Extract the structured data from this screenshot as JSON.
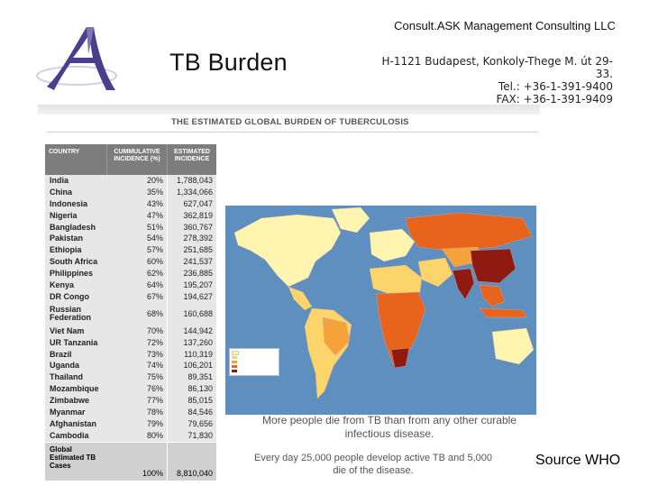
{
  "header": {
    "title": "TB Burden",
    "company": "Consult.ASK Management Consulting LLC",
    "address_line": "H-1121 Budapest, Konkoly-Thege M. út 29-33.",
    "tel_line": "Tel.:   +36-1-391-9400",
    "fax_line": "FAX: +36-1-391-9409"
  },
  "figure": {
    "title": "THE ESTIMATED GLOBAL BURDEN OF TUBERCULOSIS",
    "table": {
      "col_country": "COUNTRY",
      "col_cumulative": "CUMMULATIVE INCIDENCE (%)",
      "col_estimated": "ESTIMATED INCIDENCE",
      "rows": [
        {
          "country": "India",
          "pct": "20%",
          "incidence": "1,788,043"
        },
        {
          "country": "China",
          "pct": "35%",
          "incidence": "1,334,066"
        },
        {
          "country": "Indonesia",
          "pct": "43%",
          "incidence": "627,047"
        },
        {
          "country": "Nigeria",
          "pct": "47%",
          "incidence": "362,819"
        },
        {
          "country": "Bangladesh",
          "pct": "51%",
          "incidence": "360,767"
        },
        {
          "country": "Pakistan",
          "pct": "54%",
          "incidence": "278,392"
        },
        {
          "country": "Ethiopia",
          "pct": "57%",
          "incidence": "251,685"
        },
        {
          "country": "South Africa",
          "pct": "60%",
          "incidence": "241,537"
        },
        {
          "country": "Philippines",
          "pct": "62%",
          "incidence": "236,885"
        },
        {
          "country": "Kenya",
          "pct": "64%",
          "incidence": "195,207"
        },
        {
          "country": "DR Congo",
          "pct": "67%",
          "incidence": "194,627"
        },
        {
          "country": "Russian Federation",
          "pct": "68%",
          "incidence": "160,688"
        },
        {
          "country": "Viet Nam",
          "pct": "70%",
          "incidence": "144,942"
        },
        {
          "country": "UR Tanzania",
          "pct": "72%",
          "incidence": "137,260"
        },
        {
          "country": "Brazil",
          "pct": "73%",
          "incidence": "110,319"
        },
        {
          "country": "Uganda",
          "pct": "74%",
          "incidence": "106,201"
        },
        {
          "country": "Thailand",
          "pct": "75%",
          "incidence": "89,351"
        },
        {
          "country": "Mozambique",
          "pct": "76%",
          "incidence": "86,130"
        },
        {
          "country": "Zimbabwe",
          "pct": "77%",
          "incidence": "85,015"
        },
        {
          "country": "Myanmar",
          "pct": "78%",
          "incidence": "84,546"
        },
        {
          "country": "Afghanistan",
          "pct": "79%",
          "incidence": "79,656"
        },
        {
          "country": "Cambodia",
          "pct": "80%",
          "incidence": "71,830"
        }
      ],
      "footer": {
        "country": "Global Estimated TB Cases",
        "pct": "100%",
        "incidence": "8,810,040"
      }
    },
    "caption_1": "More people die from TB than from any other curable infectious disease.",
    "caption_2": "Every day 25,000 people develop active TB and 5,000 die of the disease.",
    "map_colors": {
      "ocean": "#5e8fbe",
      "lowest": "#fff4b0",
      "low": "#fbd46a",
      "mid": "#f6a23a",
      "high": "#e8641d",
      "highest": "#8e1a10"
    }
  },
  "source": "Source WHO"
}
